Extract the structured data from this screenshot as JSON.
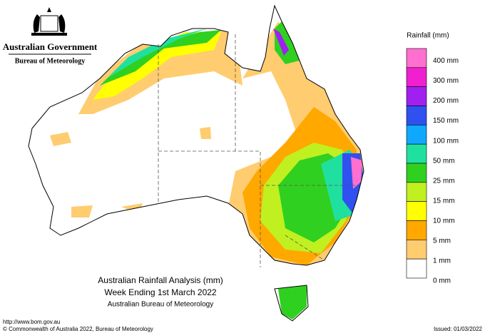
{
  "header": {
    "government": "Australian Government",
    "agency": "Bureau of Meteorology"
  },
  "title": {
    "line1": "Australian Rainfall Analysis (mm)",
    "line2": "Week Ending 1st March 2022",
    "line3": "Australian Bureau of Meteorology"
  },
  "legend": {
    "title": "Rainfall (mm)",
    "colors": [
      "#ff6fcf",
      "#f020d0",
      "#a020f0",
      "#3050f0",
      "#10a8ff",
      "#20e0a0",
      "#30d020",
      "#c0f020",
      "#ffff00",
      "#ffa800",
      "#ffcc70",
      "#ffffff"
    ],
    "labels": [
      "400 mm",
      "300 mm",
      "200 mm",
      "150 mm",
      "100 mm",
      "50 mm",
      "25 mm",
      "15 mm",
      "10 mm",
      "5 mm",
      "1 mm",
      "0 mm"
    ]
  },
  "footer": {
    "url": "http://www.bom.gov.au",
    "copyright": "© Commonwealth of Australia 2022, Bureau of Meteorology",
    "issued": "Issued: 01/03/2022"
  }
}
